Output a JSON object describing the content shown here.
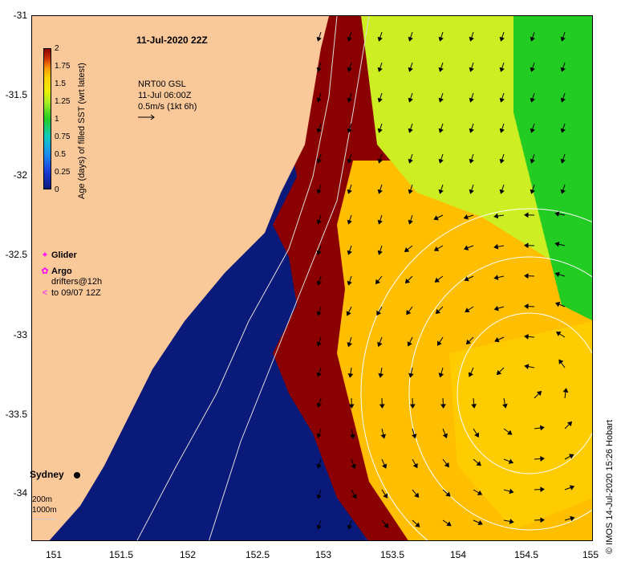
{
  "map": {
    "title": "11-Jul-2020 22Z",
    "current_overlay": {
      "line1": "NRT00 GSL",
      "line2": "11-Jul 06:00Z",
      "scale": "0.5m/s (1kt 6h)"
    },
    "x_axis_ticks": [
      "151",
      "151.5",
      "152",
      "152.5",
      "153",
      "153.5",
      "154",
      "154.5",
      "155"
    ],
    "y_axis_ticks": [
      "-31",
      "-31.5",
      "-32",
      "-32.5",
      "-33",
      "-33.5",
      "-34"
    ],
    "colorbar": {
      "label": "Age (days) of filled SST (wrt latest)",
      "ticks": [
        "2",
        "1.75",
        "1.5",
        "1.25",
        "1",
        "0.75",
        "0.5",
        "0.25",
        "0"
      ]
    },
    "legend": {
      "glider": "Glider",
      "argo": "Argo",
      "drifters_line1": "drifters@12h",
      "drifters_line2": "to 09/07 12Z"
    },
    "place_label": "Sydney",
    "depth_legend": {
      "line1": "200m",
      "line2": "1000m"
    },
    "credit": "© IMOS 14-Jul-2020 15:26 Hobart",
    "colors": {
      "land": "#fbc89a",
      "age_0": "#0a1a7a",
      "age_high": "#8b0000",
      "orange": "#ffbf00",
      "yellow_green": "#ccee22",
      "green": "#22cc22",
      "arrow": "#000000"
    }
  }
}
